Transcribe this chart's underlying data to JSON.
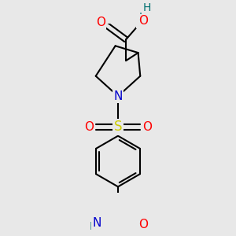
{
  "background_color": "#e8e8e8",
  "bond_color": "#000000",
  "bond_width": 1.5,
  "atom_colors": {
    "O": "#ff0000",
    "N": "#0000cc",
    "S": "#cccc00",
    "H": "#007070"
  },
  "font_size": 10,
  "fig_size": [
    3.0,
    3.0
  ],
  "dpi": 100,
  "xlim": [
    -1.3,
    1.3
  ],
  "ylim": [
    -1.55,
    1.65
  ]
}
